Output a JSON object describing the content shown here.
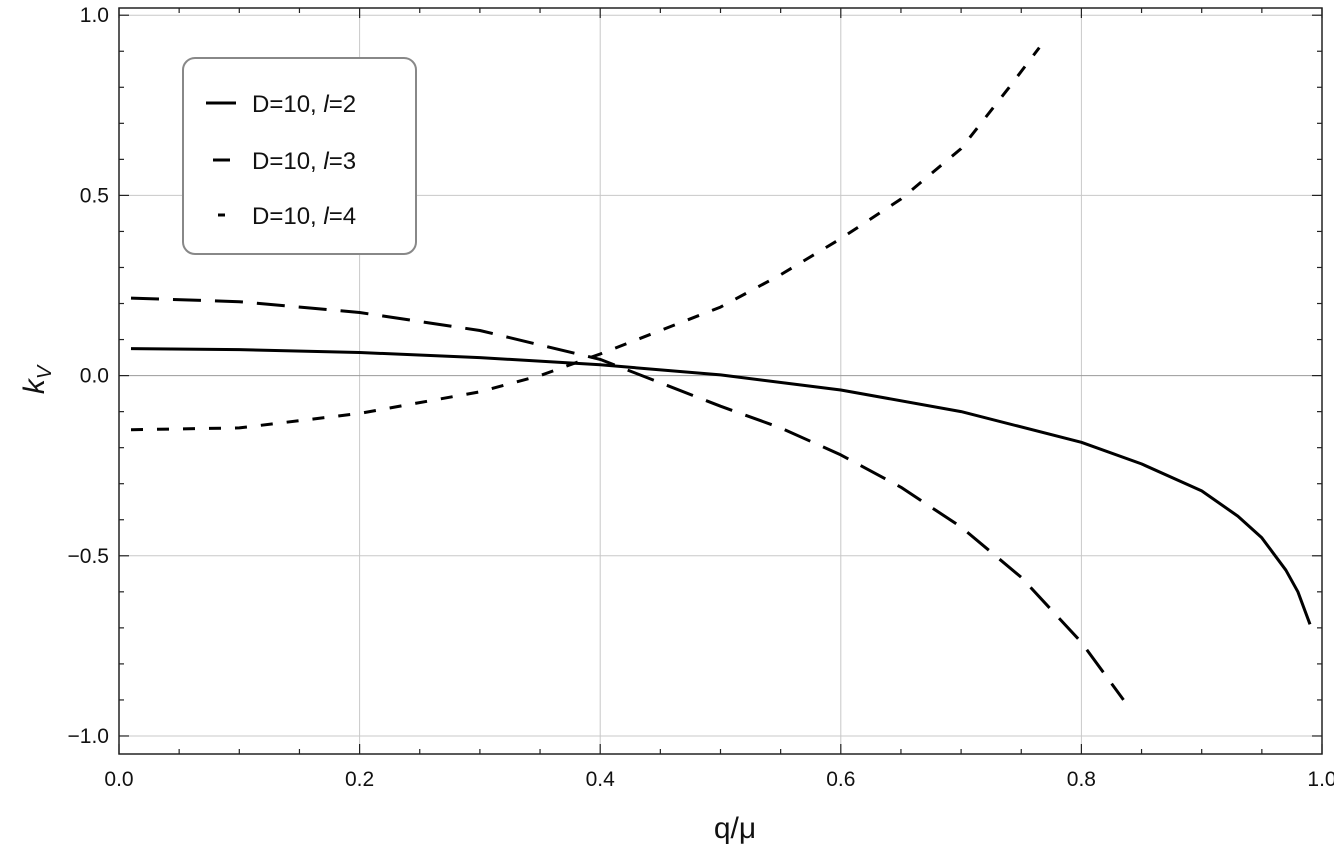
{
  "chart_data": {
    "type": "line",
    "title": "",
    "xlabel": "q/μ",
    "ylabel": "k_V",
    "ylabel_main": "k",
    "ylabel_sub": "V",
    "xlim": [
      0,
      1.0
    ],
    "ylim": [
      -1.05,
      1.02
    ],
    "grid": true,
    "legend_position": "top-left",
    "x_ticks": [
      0.0,
      0.2,
      0.4,
      0.6,
      0.8,
      1.0
    ],
    "x_tick_labels": [
      "0.0",
      "0.2",
      "0.4",
      "0.6",
      "0.8",
      "1.0"
    ],
    "y_ticks": [
      -1.0,
      -0.5,
      0.0,
      0.5,
      1.0
    ],
    "y_tick_labels": [
      "−1.0",
      "−0.5",
      "0.0",
      "0.5",
      "1.0"
    ],
    "series": [
      {
        "name": "D=10, l=2",
        "legend_prefix": "D=10, ",
        "legend_l": "l",
        "legend_suffix": "=2",
        "style": "solid",
        "x": [
          0.01,
          0.1,
          0.2,
          0.3,
          0.4,
          0.5,
          0.6,
          0.7,
          0.8,
          0.85,
          0.9,
          0.93,
          0.95,
          0.97,
          0.98,
          0.99
        ],
        "y": [
          0.075,
          0.072,
          0.064,
          0.05,
          0.03,
          0.002,
          -0.04,
          -0.1,
          -0.185,
          -0.245,
          -0.32,
          -0.39,
          -0.45,
          -0.54,
          -0.6,
          -0.69
        ]
      },
      {
        "name": "D=10, l=3",
        "legend_prefix": "D=10, ",
        "legend_l": "l",
        "legend_suffix": "=3",
        "style": "dashed",
        "x": [
          0.01,
          0.1,
          0.2,
          0.3,
          0.4,
          0.45,
          0.5,
          0.55,
          0.6,
          0.65,
          0.7,
          0.75,
          0.8,
          0.835
        ],
        "y": [
          0.215,
          0.205,
          0.175,
          0.125,
          0.045,
          -0.02,
          -0.085,
          -0.145,
          -0.22,
          -0.31,
          -0.42,
          -0.56,
          -0.74,
          -0.9
        ]
      },
      {
        "name": "D=10, l=4",
        "legend_prefix": "D=10, ",
        "legend_l": "l",
        "legend_suffix": "=4",
        "style": "short-dashed",
        "x": [
          0.01,
          0.1,
          0.2,
          0.3,
          0.35,
          0.4,
          0.45,
          0.5,
          0.55,
          0.6,
          0.65,
          0.7,
          0.74,
          0.765
        ],
        "y": [
          -0.15,
          -0.145,
          -0.105,
          -0.045,
          0.0,
          0.06,
          0.125,
          0.19,
          0.28,
          0.38,
          0.49,
          0.63,
          0.8,
          0.91
        ]
      }
    ]
  }
}
